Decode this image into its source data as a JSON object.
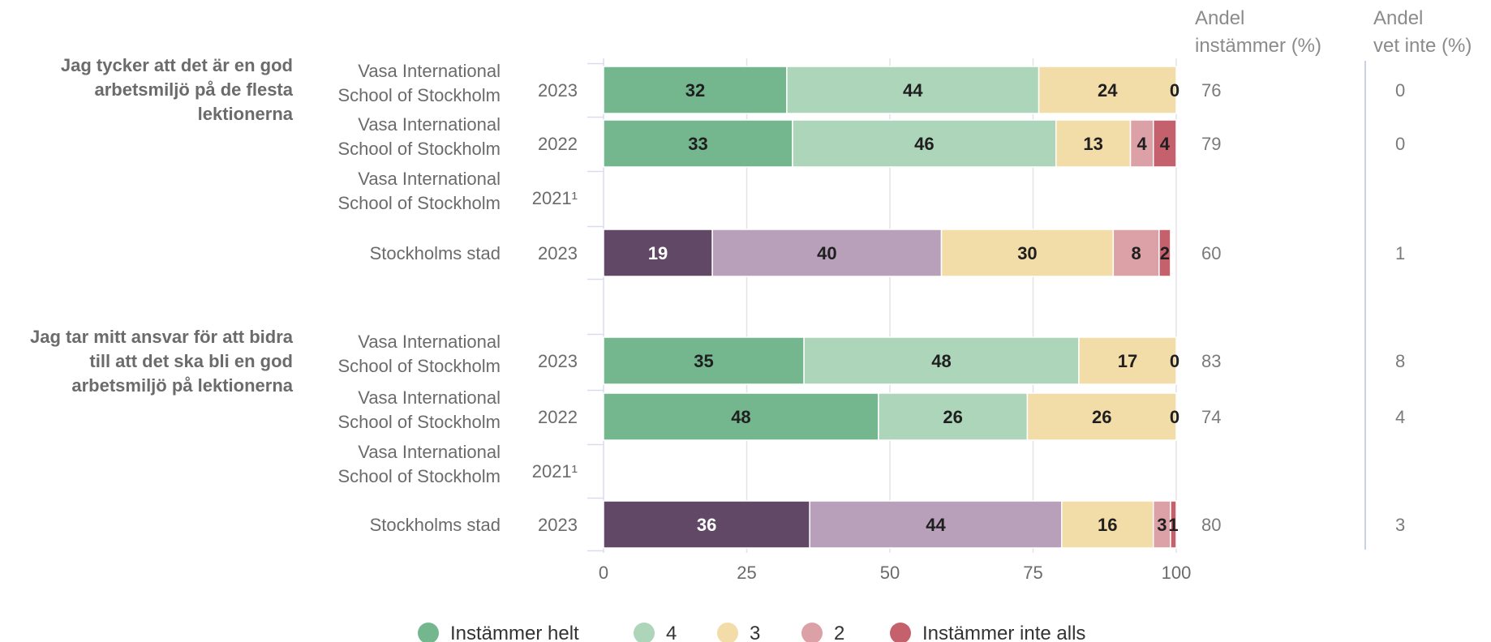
{
  "chart_data": {
    "type": "bar",
    "orientation": "horizontal",
    "stacked": true,
    "xlim": [
      0,
      100
    ],
    "xticks": [
      0,
      25,
      50,
      75,
      100
    ],
    "grid": true,
    "legend_position": "bottom",
    "column_headers": {
      "andel_instammer": [
        "Andel",
        "instämmer (%)"
      ],
      "andel_vet_inte": [
        "Andel",
        "vet inte (%)"
      ]
    },
    "legend": [
      {
        "label": "Instämmer helt",
        "color": "#74b78e"
      },
      {
        "label": "4",
        "color": "#acd5ba"
      },
      {
        "label": "3",
        "color": "#f2dca8"
      },
      {
        "label": "2",
        "color": "#dca1a7"
      },
      {
        "label": "Instämmer inte alls",
        "color": "#c4616d"
      }
    ],
    "category_colors": {
      "school": [
        "#74b78e",
        "#acd5ba",
        "#f2dca8",
        "#dca1a7",
        "#c4616d"
      ],
      "city": [
        "#624867",
        "#b8a0ba",
        "#f2dca8",
        "#dca1a7",
        "#c4616d"
      ]
    },
    "groups": [
      {
        "question": [
          "Jag tycker att det är en god",
          "arbetsmiljö på de flesta",
          "lektionerna"
        ],
        "rows": [
          {
            "unit": [
              "Vasa International",
              "School of Stockholm"
            ],
            "year": "2023",
            "scheme": "school",
            "values": [
              32,
              44,
              24,
              0
            ],
            "andel_instammer": "76",
            "andel_vet_inte": "0"
          },
          {
            "unit": [
              "Vasa International",
              "School of Stockholm"
            ],
            "year": "2022",
            "scheme": "school",
            "values": [
              33,
              46,
              13,
              4,
              4
            ],
            "andel_instammer": "79",
            "andel_vet_inte": "0"
          },
          {
            "unit": [
              "Vasa International",
              "School of Stockholm"
            ],
            "year": "2021¹",
            "scheme": "school",
            "values": [],
            "andel_instammer": "",
            "andel_vet_inte": ""
          },
          {
            "unit": [
              "Stockholms stad"
            ],
            "year": "2023",
            "scheme": "city",
            "values": [
              19,
              40,
              30,
              8,
              2
            ],
            "andel_instammer": "60",
            "andel_vet_inte": "1"
          }
        ]
      },
      {
        "question": [
          "Jag tar mitt ansvar för att bidra",
          "till att det ska bli en god",
          "arbetsmiljö på lektionerna"
        ],
        "rows": [
          {
            "unit": [
              "Vasa International",
              "School of Stockholm"
            ],
            "year": "2023",
            "scheme": "school",
            "values": [
              35,
              48,
              17,
              0
            ],
            "andel_instammer": "83",
            "andel_vet_inte": "8"
          },
          {
            "unit": [
              "Vasa International",
              "School of Stockholm"
            ],
            "year": "2022",
            "scheme": "school",
            "values": [
              48,
              26,
              26,
              0
            ],
            "andel_instammer": "74",
            "andel_vet_inte": "4"
          },
          {
            "unit": [
              "Vasa International",
              "School of Stockholm"
            ],
            "year": "2021¹",
            "scheme": "school",
            "values": [],
            "andel_instammer": "",
            "andel_vet_inte": ""
          },
          {
            "unit": [
              "Stockholms stad"
            ],
            "year": "2023",
            "scheme": "city",
            "values": [
              36,
              44,
              16,
              3,
              1
            ],
            "andel_instammer": "80",
            "andel_vet_inte": "3"
          }
        ]
      }
    ]
  }
}
